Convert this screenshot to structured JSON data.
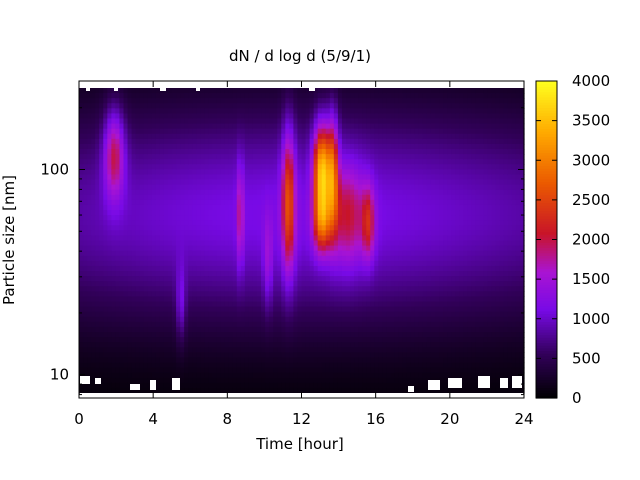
{
  "chart_data": {
    "type": "heatmap",
    "title": "dN / d log d (5/9/1)",
    "xlabel": "Time [hour]",
    "ylabel": "Particle size [nm]",
    "xlim": [
      0,
      24
    ],
    "ylim": [
      7.7,
      270
    ],
    "y_scale": "log",
    "x_ticks": [
      0,
      4,
      8,
      12,
      16,
      20,
      24
    ],
    "x_tick_labels": [
      "0",
      "4",
      "8",
      "12",
      "16",
      "20",
      "24"
    ],
    "y_ticks": [
      10,
      100
    ],
    "y_tick_labels": [
      "10",
      "100"
    ],
    "colorbar": {
      "range": [
        0,
        4000
      ],
      "ticks": [
        0,
        500,
        1000,
        1500,
        2000,
        2500,
        3000,
        3500,
        4000
      ],
      "tick_labels": [
        "0",
        "500",
        "1000",
        "1500",
        "2000",
        "2500",
        "3000",
        "3500",
        "4000"
      ],
      "colormap": "black-purple-red-orange-yellow"
    },
    "grid": false,
    "features": [
      {
        "t": 1.9,
        "d": 120,
        "peak": 2200,
        "t_width": 0.55,
        "log_d_width": 0.22
      },
      {
        "t": 5.5,
        "d": 22,
        "peak": 1350,
        "t_width": 0.25,
        "log_d_width": 0.18
      },
      {
        "t": 8.7,
        "d": 60,
        "peak": 1600,
        "t_width": 0.18,
        "log_d_width": 0.25
      },
      {
        "t": 10.2,
        "d": 35,
        "peak": 1300,
        "t_width": 0.25,
        "log_d_width": 0.22
      },
      {
        "t": 11.3,
        "d": 70,
        "peak": 2500,
        "t_width": 0.35,
        "log_d_width": 0.35
      },
      {
        "t": 13.1,
        "d": 100,
        "peak": 3700,
        "t_width": 0.45,
        "log_d_width": 0.22
      },
      {
        "t": 13.1,
        "d": 55,
        "peak": 2400,
        "t_width": 0.45,
        "log_d_width": 0.15
      },
      {
        "t": 13.7,
        "d": 95,
        "peak": 2600,
        "t_width": 0.3,
        "log_d_width": 0.28
      },
      {
        "t": 15.6,
        "d": 55,
        "peak": 1900,
        "t_width": 0.35,
        "log_d_width": 0.18
      },
      {
        "t": 14.5,
        "d": 60,
        "peak": 1800,
        "t_width": 0.9,
        "log_d_width": 0.25
      }
    ],
    "background": {
      "center_d": 60,
      "log_d_width": 0.55,
      "level": 1150
    }
  }
}
